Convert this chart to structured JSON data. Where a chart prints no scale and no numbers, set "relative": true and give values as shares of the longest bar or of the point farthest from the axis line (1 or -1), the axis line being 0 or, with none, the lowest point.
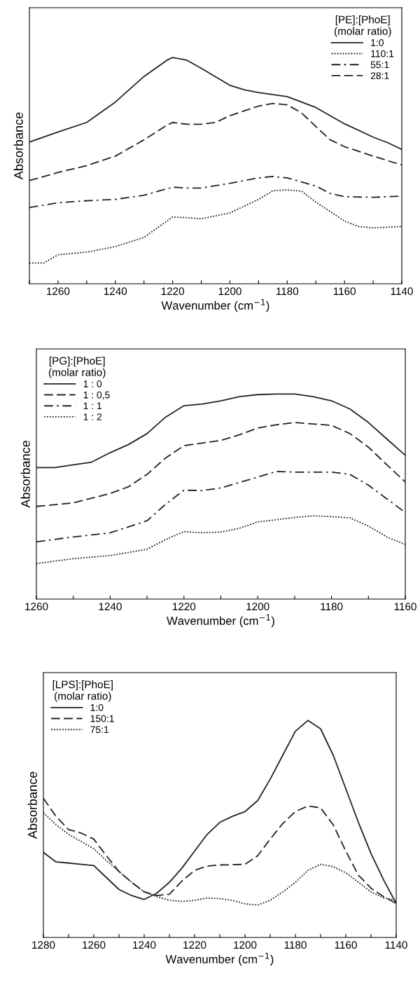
{
  "chart_data": [
    {
      "type": "line",
      "relative": true,
      "xlabel": "Wavenumber (cm$^{−1}$)",
      "ylabel": "Absorbance",
      "legend_title": "[PE]:[PhoE]\n(molar ratio)",
      "legend": "top right",
      "tick_labels": "x",
      "grid": false,
      "xlim": [
        1270,
        1140
      ],
      "xticks": [
        {
          "value": 1270,
          "label": null
        },
        1260,
        {
          "value": 1250,
          "label": null
        },
        1240,
        {
          "value": 1230,
          "label": null
        },
        1220,
        {
          "value": 1210,
          "label": null
        },
        1200,
        {
          "value": 1190,
          "label": null
        },
        1180,
        {
          "value": 1170,
          "label": null
        },
        1160,
        {
          "value": 1150,
          "label": null
        },
        1140
      ],
      "series": [
        {
          "name": "1:0",
          "color": "#222222",
          "line_style": "solid",
          "x": [
            1270,
            1260,
            1250,
            1240,
            1230,
            1222,
            1220,
            1215,
            1210,
            1200,
            1195,
            1190,
            1180,
            1170,
            1160,
            1150,
            1145,
            1140
          ],
          "values": [
            0.626,
            0.671,
            0.713,
            0.803,
            0.916,
            0.988,
            1.0,
            0.988,
            0.952,
            0.877,
            0.857,
            0.845,
            0.827,
            0.779,
            0.707,
            0.648,
            0.624,
            0.594
          ]
        },
        {
          "name": "110:1",
          "color": "#222222",
          "line_style": "dotted",
          "x": [
            1270,
            1265,
            1260,
            1250,
            1240,
            1230,
            1220,
            1215,
            1210,
            1200,
            1190,
            1185,
            1180,
            1175,
            1170,
            1160,
            1155,
            1150,
            1140
          ],
          "values": [
            0.092,
            0.092,
            0.128,
            0.14,
            0.164,
            0.205,
            0.295,
            0.292,
            0.287,
            0.313,
            0.373,
            0.411,
            0.415,
            0.409,
            0.361,
            0.277,
            0.253,
            0.247,
            0.253
          ]
        },
        {
          "name": "55:1",
          "color": "#222222",
          "line_style": "dashdot",
          "x": [
            1270,
            1260,
            1250,
            1240,
            1230,
            1220,
            1215,
            1210,
            1200,
            1190,
            1185,
            1180,
            1170,
            1165,
            1160,
            1150,
            1140
          ],
          "values": [
            0.337,
            0.358,
            0.367,
            0.373,
            0.391,
            0.427,
            0.423,
            0.423,
            0.444,
            0.468,
            0.474,
            0.468,
            0.432,
            0.399,
            0.385,
            0.382,
            0.387
          ]
        },
        {
          "name": "28:1",
          "color": "#222222",
          "line_style": "dashed",
          "x": [
            1270,
            1260,
            1250,
            1240,
            1230,
            1222,
            1220,
            1215,
            1210,
            1205,
            1200,
            1190,
            1185,
            1180,
            1175,
            1170,
            1165,
            1160,
            1150,
            1140
          ],
          "values": [
            0.456,
            0.492,
            0.522,
            0.564,
            0.636,
            0.701,
            0.713,
            0.705,
            0.705,
            0.713,
            0.743,
            0.785,
            0.797,
            0.791,
            0.755,
            0.695,
            0.636,
            0.606,
            0.564,
            0.525
          ]
        }
      ]
    },
    {
      "type": "line",
      "relative": true,
      "xlabel": "Wavenumber (cm$^{−1}$)",
      "ylabel": "Absorbance",
      "legend_title": "[PG]:[PhoE]\n(molar ratio)",
      "legend": "top left",
      "tick_labels": "x",
      "grid": false,
      "xlim": [
        1260,
        1160
      ],
      "xticks": [
        1260,
        {
          "value": 1250,
          "label": null
        },
        1240,
        {
          "value": 1230,
          "label": null
        },
        1220,
        {
          "value": 1210,
          "label": null
        },
        1200,
        {
          "value": 1190,
          "label": null
        },
        1180,
        {
          "value": 1170,
          "label": null
        },
        1160
      ],
      "series": [
        {
          "name": "1 : 0",
          "color": "#222222",
          "line_style": "solid",
          "x": [
            1260,
            1255,
            1250,
            1245,
            1240,
            1235,
            1230,
            1225,
            1220,
            1215,
            1210,
            1205,
            1200,
            1195,
            1190,
            1185,
            1180,
            1175,
            1170,
            1165,
            1160
          ],
          "values": [
            0.641,
            0.641,
            0.655,
            0.668,
            0.714,
            0.754,
            0.807,
            0.887,
            0.943,
            0.951,
            0.967,
            0.987,
            0.997,
            1.0,
            1.0,
            0.987,
            0.967,
            0.927,
            0.861,
            0.781,
            0.701
          ]
        },
        {
          "name": "1 : 0,5",
          "color": "#222222",
          "line_style": "dashed",
          "x": [
            1260,
            1250,
            1240,
            1235,
            1230,
            1225,
            1220,
            1215,
            1210,
            1205,
            1200,
            1195,
            1190,
            1185,
            1180,
            1175,
            1170,
            1165,
            1160
          ],
          "values": [
            0.452,
            0.469,
            0.515,
            0.548,
            0.608,
            0.688,
            0.748,
            0.761,
            0.774,
            0.801,
            0.834,
            0.85,
            0.861,
            0.854,
            0.847,
            0.807,
            0.741,
            0.655,
            0.571
          ]
        },
        {
          "name": "1 : 1",
          "color": "#222222",
          "line_style": "dashdot",
          "x": [
            1260,
            1250,
            1240,
            1230,
            1225,
            1220,
            1215,
            1210,
            1200,
            1195,
            1190,
            1180,
            1175,
            1170,
            1165,
            1160
          ],
          "values": [
            0.279,
            0.303,
            0.323,
            0.382,
            0.462,
            0.531,
            0.529,
            0.542,
            0.595,
            0.622,
            0.619,
            0.619,
            0.608,
            0.555,
            0.489,
            0.422
          ]
        },
        {
          "name": "1 : 2",
          "color": "#222222",
          "line_style": "dotted",
          "x": [
            1260,
            1250,
            1240,
            1230,
            1225,
            1220,
            1215,
            1210,
            1205,
            1200,
            1190,
            1185,
            1180,
            1175,
            1170,
            1165,
            1160
          ],
          "values": [
            0.173,
            0.197,
            0.212,
            0.243,
            0.29,
            0.329,
            0.323,
            0.327,
            0.345,
            0.376,
            0.398,
            0.406,
            0.402,
            0.396,
            0.356,
            0.303,
            0.266
          ]
        }
      ]
    },
    {
      "type": "line",
      "relative": true,
      "xlabel": "Wavenumber (cm$^{−1}$)",
      "ylabel": "Absorbance",
      "legend_title": "[LPS]:[PhoE]\n(molar ratio)",
      "legend": "top left",
      "tick_labels": "x",
      "grid": false,
      "xlim": [
        1280,
        1140
      ],
      "xticks": [
        1280,
        {
          "value": 1270,
          "label": null
        },
        1260,
        {
          "value": 1250,
          "label": null
        },
        1240,
        {
          "value": 1230,
          "label": null
        },
        1220,
        {
          "value": 1210,
          "label": null
        },
        1200,
        {
          "value": 1190,
          "label": null
        },
        1180,
        {
          "value": 1170,
          "label": null
        },
        1160,
        {
          "value": 1150,
          "label": null
        },
        1140
      ],
      "series": [
        {
          "name": "1:0",
          "color": "#222222",
          "line_style": "solid",
          "x": [
            1280,
            1275,
            1270,
            1265,
            1260,
            1255,
            1250,
            1245,
            1240,
            1235,
            1230,
            1225,
            1220,
            1215,
            1210,
            1205,
            1200,
            1195,
            1190,
            1185,
            1180,
            1175,
            1170,
            1165,
            1160,
            1155,
            1150,
            1145,
            1140
          ],
          "values": [
            0.392,
            0.348,
            0.343,
            0.337,
            0.331,
            0.276,
            0.221,
            0.193,
            0.175,
            0.204,
            0.254,
            0.32,
            0.398,
            0.475,
            0.53,
            0.558,
            0.58,
            0.63,
            0.729,
            0.84,
            0.95,
            1.0,
            0.961,
            0.84,
            0.685,
            0.53,
            0.387,
            0.265,
            0.157
          ]
        },
        {
          "name": "150:1",
          "color": "#222222",
          "line_style": "dashed",
          "x": [
            1280,
            1275,
            1270,
            1265,
            1260,
            1255,
            1250,
            1245,
            1240,
            1235,
            1230,
            1225,
            1220,
            1215,
            1210,
            1205,
            1200,
            1195,
            1190,
            1185,
            1180,
            1175,
            1170,
            1165,
            1160,
            1155,
            1150,
            1145,
            1140
          ],
          "values": [
            0.641,
            0.558,
            0.497,
            0.481,
            0.453,
            0.376,
            0.304,
            0.254,
            0.21,
            0.193,
            0.199,
            0.26,
            0.309,
            0.329,
            0.334,
            0.335,
            0.337,
            0.376,
            0.453,
            0.525,
            0.58,
            0.606,
            0.597,
            0.519,
            0.398,
            0.287,
            0.227,
            0.188,
            0.157
          ]
        },
        {
          "name": "75:1",
          "color": "#222222",
          "line_style": "dotted",
          "x": [
            1280,
            1275,
            1270,
            1265,
            1260,
            1255,
            1250,
            1245,
            1240,
            1235,
            1230,
            1225,
            1220,
            1215,
            1210,
            1205,
            1200,
            1195,
            1190,
            1185,
            1180,
            1175,
            1170,
            1165,
            1160,
            1155,
            1150,
            1145,
            1140
          ],
          "values": [
            0.575,
            0.519,
            0.475,
            0.442,
            0.409,
            0.354,
            0.304,
            0.254,
            0.21,
            0.188,
            0.171,
            0.166,
            0.171,
            0.182,
            0.179,
            0.171,
            0.155,
            0.149,
            0.171,
            0.21,
            0.254,
            0.309,
            0.337,
            0.326,
            0.298,
            0.254,
            0.21,
            0.182,
            0.171
          ]
        }
      ]
    }
  ]
}
